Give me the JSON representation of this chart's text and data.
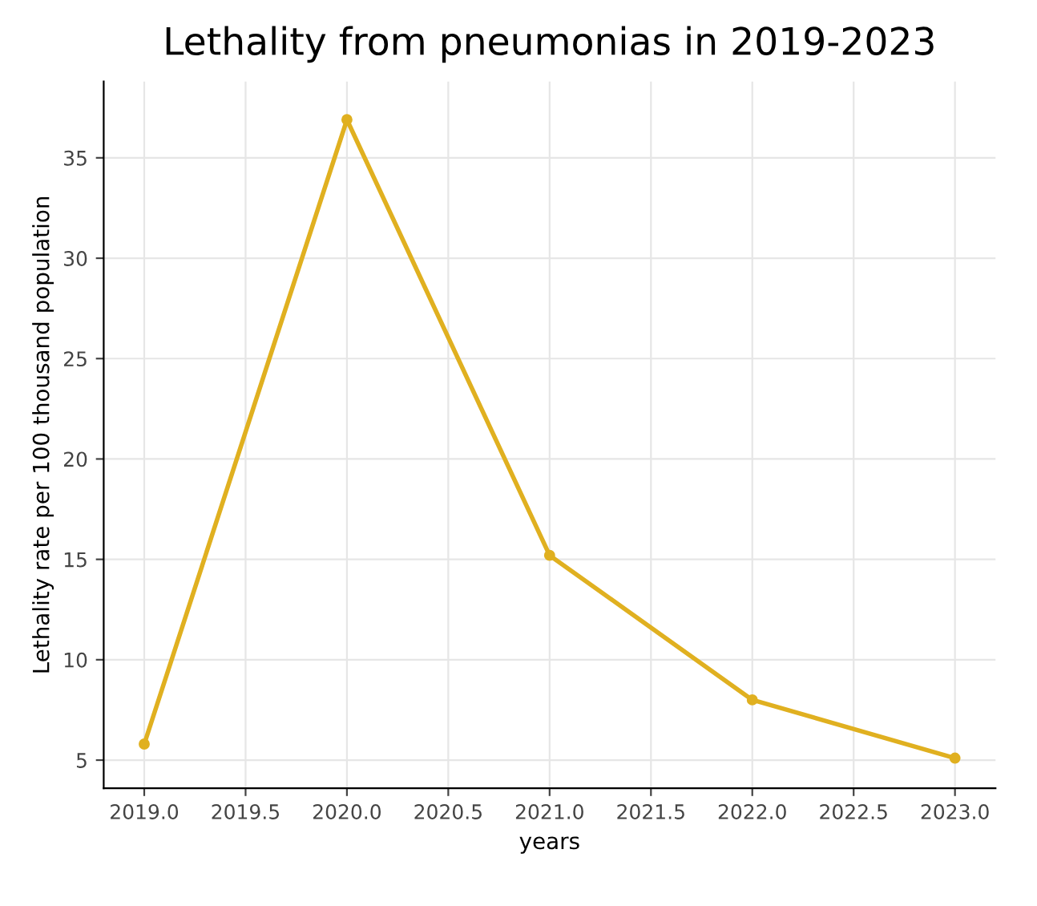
{
  "chart_data": {
    "type": "line",
    "title": "Lethality from pneumonias in 2019-2023",
    "xlabel": "years",
    "ylabel": "Lethality rate per 100 thousand population",
    "x": [
      2019,
      2020,
      2021,
      2022,
      2023
    ],
    "series": [
      {
        "color": "#e0b020",
        "values": [
          5.8,
          36.9,
          15.2,
          8.0,
          5.1
        ]
      }
    ],
    "xlim": [
      2018.8,
      2023.2
    ],
    "ylim": [
      3.6,
      38.8
    ],
    "xticks": [
      {
        "value": 2019,
        "label": "2019.0"
      },
      {
        "value": 2019.5,
        "label": "2019.5"
      },
      {
        "value": 2020,
        "label": "2020.0"
      },
      {
        "value": 2020.5,
        "label": "2020.5"
      },
      {
        "value": 2021,
        "label": "2021.0"
      },
      {
        "value": 2021.5,
        "label": "2021.5"
      },
      {
        "value": 2022,
        "label": "2022.0"
      },
      {
        "value": 2022.5,
        "label": "2022.5"
      },
      {
        "value": 2023,
        "label": "2023.0"
      }
    ],
    "yticks": [
      5,
      10,
      15,
      20,
      25,
      30,
      35
    ],
    "grid": true,
    "marker": "circle",
    "line_style": "solid"
  }
}
